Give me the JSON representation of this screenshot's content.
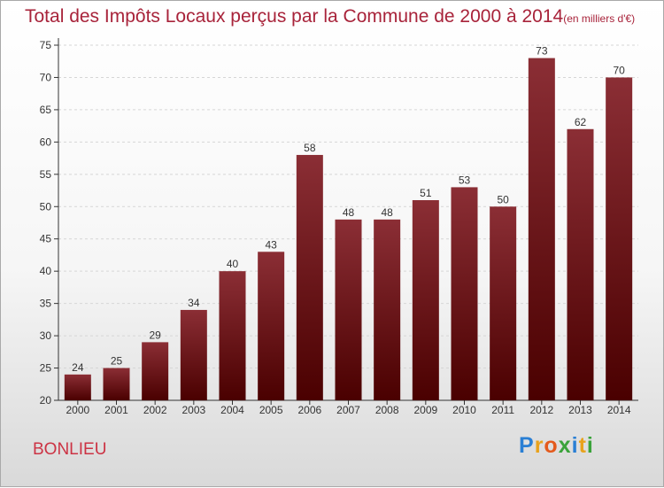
{
  "chart_data": {
    "type": "bar",
    "title": "Total des Impôts Locaux perçus par la Commune de 2000 à 2014",
    "subtitle": "(en milliers d'€)",
    "categories": [
      "2000",
      "2001",
      "2002",
      "2003",
      "2004",
      "2005",
      "2006",
      "2007",
      "2008",
      "2009",
      "2010",
      "2011",
      "2012",
      "2013",
      "2014"
    ],
    "values": [
      24,
      25,
      29,
      34,
      40,
      43,
      58,
      48,
      48,
      51,
      53,
      50,
      73,
      62,
      70
    ],
    "ylim": [
      20,
      75
    ],
    "yticks": [
      20,
      25,
      30,
      35,
      40,
      45,
      50,
      55,
      60,
      65,
      70,
      75
    ],
    "xlabel": "",
    "ylabel": ""
  },
  "commune": "BONLIEU",
  "logo": {
    "letters": [
      "P",
      "r",
      "o",
      "x",
      "i",
      "t",
      "i"
    ],
    "colors": [
      "#2a7fd4",
      "#e8a21c",
      "#e45a1c",
      "#3aa33a",
      "#2a7fd4",
      "#e8a21c",
      "#3aa33a"
    ]
  },
  "colors": {
    "bar_top": "#8b2e35",
    "bar_bottom": "#4a0000",
    "title": "#a8233a"
  }
}
